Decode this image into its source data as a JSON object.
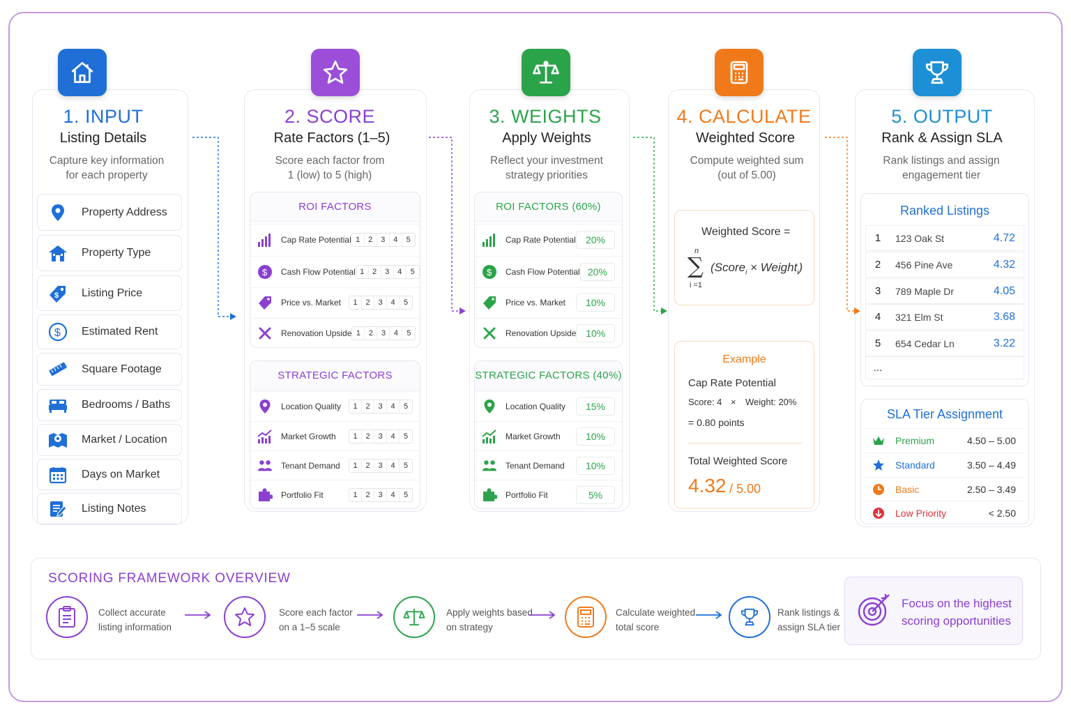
{
  "colors": {
    "blue": "#1f6fd6",
    "purple": "#8a3fd1",
    "green": "#2ba34a",
    "orange": "#f07a1a",
    "cyan": "#1d8fd6"
  },
  "steps": [
    {
      "title": "1. INPUT",
      "subtitle": "Listing Details",
      "desc1": "Capture key information",
      "desc2": "for each property",
      "icon": "house-icon"
    },
    {
      "title": "2. SCORE",
      "subtitle": "Rate Factors (1–5)",
      "desc1": "Score each factor from",
      "desc2": "1 (low) to 5 (high)",
      "icon": "star-icon"
    },
    {
      "title": "3. WEIGHTS",
      "subtitle": "Apply Weights",
      "desc1": "Reflect your investment",
      "desc2": "strategy priorities",
      "icon": "scales-icon"
    },
    {
      "title": "4. CALCULATE",
      "subtitle": "Weighted Score",
      "desc1": "Compute weighted sum",
      "desc2": "(out of 5.00)",
      "icon": "calculator-icon"
    },
    {
      "title": "5. OUTPUT",
      "subtitle": "Rank & Assign SLA",
      "desc1": "Rank listings and assign",
      "desc2": "engagement tier",
      "icon": "trophy-icon"
    }
  ],
  "inputs": [
    {
      "label": "Property Address",
      "icon": "location-pin-icon"
    },
    {
      "label": "Property Type",
      "icon": "house-icon"
    },
    {
      "label": "Listing Price",
      "icon": "price-tag-icon"
    },
    {
      "label": "Estimated Rent",
      "icon": "dollar-circle-icon"
    },
    {
      "label": "Square Footage",
      "icon": "ruler-icon"
    },
    {
      "label": "Bedrooms / Baths",
      "icon": "bed-icon"
    },
    {
      "label": "Market / Location",
      "icon": "map-icon"
    },
    {
      "label": "Days on Market",
      "icon": "calendar-icon"
    },
    {
      "label": "Listing Notes",
      "icon": "notes-icon"
    }
  ],
  "score": {
    "roi_header": "ROI FACTORS",
    "strategic_header": "STRATEGIC FACTORS",
    "scale": [
      "1",
      "2",
      "3",
      "4",
      "5"
    ],
    "roi": [
      {
        "label": "Cap Rate Potential",
        "icon": "bar-chart-icon"
      },
      {
        "label": "Cash Flow Potential",
        "icon": "dollar-coin-icon"
      },
      {
        "label": "Price vs. Market",
        "icon": "tag-icon"
      },
      {
        "label": "Renovation Upside",
        "icon": "tools-icon"
      }
    ],
    "strategic": [
      {
        "label": "Location Quality",
        "icon": "location-pin-icon"
      },
      {
        "label": "Market Growth",
        "icon": "growth-chart-icon"
      },
      {
        "label": "Tenant Demand",
        "icon": "people-icon"
      },
      {
        "label": "Portfolio Fit",
        "icon": "puzzle-icon"
      }
    ]
  },
  "weights": {
    "roi_header": "ROI FACTORS (60%)",
    "strategic_header": "STRATEGIC FACTORS (40%)",
    "roi": [
      {
        "label": "Cap Rate Potential",
        "pct": "20%",
        "icon": "bar-chart-icon"
      },
      {
        "label": "Cash Flow Potential",
        "pct": "20%",
        "icon": "dollar-coin-icon"
      },
      {
        "label": "Price vs. Market",
        "pct": "10%",
        "icon": "tag-icon"
      },
      {
        "label": "Renovation Upside",
        "pct": "10%",
        "icon": "tools-icon"
      }
    ],
    "strategic": [
      {
        "label": "Location Quality",
        "pct": "15%",
        "icon": "location-pin-icon"
      },
      {
        "label": "Market Growth",
        "pct": "10%",
        "icon": "growth-chart-icon"
      },
      {
        "label": "Tenant Demand",
        "pct": "10%",
        "icon": "people-icon"
      },
      {
        "label": "Portfolio Fit",
        "pct": "5%",
        "icon": "puzzle-icon"
      }
    ]
  },
  "calculate": {
    "formula_label": "Weighted Score =",
    "sum_top": "n",
    "sum_bottom": "i =1",
    "formula_body": "(Score",
    "sub_i": "i",
    "times_weight": " × Weight",
    "close": ")",
    "example_title": "Example",
    "example_factor": "Cap Rate Potential",
    "example_score": "Score: 4",
    "example_times": "×",
    "example_weight": "Weight: 20%",
    "example_result": "= 0.80 points",
    "total_label": "Total Weighted Score",
    "total_value": "4.32",
    "total_max": "/ 5.00"
  },
  "output": {
    "ranked_title": "Ranked Listings",
    "ranked": [
      {
        "rank": "1",
        "address": "123 Oak St",
        "score": "4.72"
      },
      {
        "rank": "2",
        "address": "456 Pine Ave",
        "score": "4.32"
      },
      {
        "rank": "3",
        "address": "789 Maple Dr",
        "score": "4.05"
      },
      {
        "rank": "4",
        "address": "321 Elm St",
        "score": "3.68"
      },
      {
        "rank": "5",
        "address": "654 Cedar Ln",
        "score": "3.22"
      }
    ],
    "ellipsis": "...",
    "sla_title": "SLA Tier Assignment",
    "tiers": [
      {
        "name": "Premium",
        "range": "4.50 – 5.00",
        "color": "#2ba34a",
        "icon": "crown-icon"
      },
      {
        "name": "Standard",
        "range": "3.50 – 4.49",
        "color": "#1f6fd6",
        "icon": "star-icon"
      },
      {
        "name": "Basic",
        "range": "2.50 – 3.49",
        "color": "#f07a1a",
        "icon": "clock-icon"
      },
      {
        "name": "Low Priority",
        "range": "< 2.50",
        "color": "#e0303a",
        "icon": "down-arrow-icon"
      }
    ]
  },
  "overview": {
    "title": "SCORING FRAMEWORK OVERVIEW",
    "items": [
      {
        "l1": "Collect accurate",
        "l2": "listing information",
        "icon": "clipboard-icon"
      },
      {
        "l1": "Score each factor",
        "l2": "on a 1–5 scale",
        "icon": "star-icon"
      },
      {
        "l1": "Apply weights based",
        "l2": "on strategy",
        "icon": "scales-icon"
      },
      {
        "l1": "Calculate weighted",
        "l2": "total score",
        "icon": "calculator-icon"
      },
      {
        "l1": "Rank listings &",
        "l2": "assign SLA tier",
        "icon": "trophy-icon"
      }
    ],
    "focus_l1": "Focus on the highest",
    "focus_l2": "scoring opportunities",
    "focus_icon": "target-icon"
  }
}
